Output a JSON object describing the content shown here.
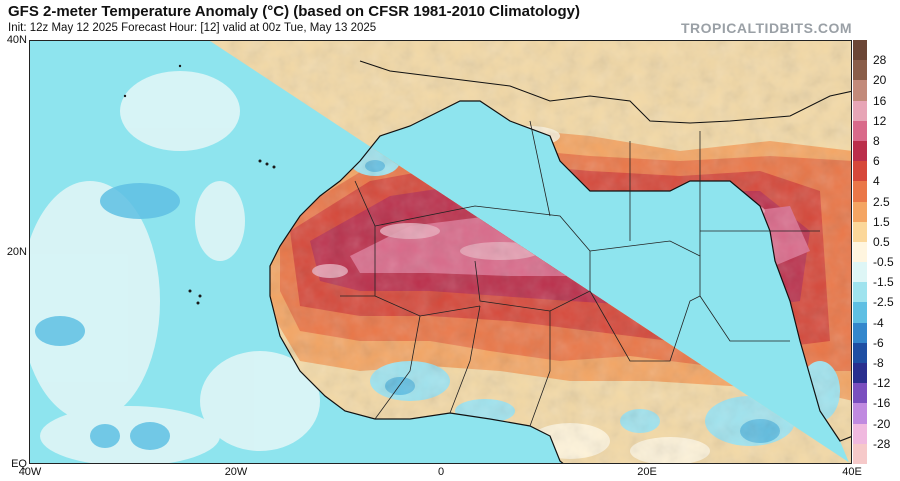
{
  "header": {
    "title": "GFS 2-meter Temperature Anomaly (°C) (based on CFSR 1981-2010 Climatology)",
    "subtitle": "Init: 12z May 12 2025   Forecast Hour: [12]   valid at 00z Tue, May 13 2025",
    "brand": "TROPICALTIDBITS.COM"
  },
  "axes": {
    "lat_labels": [
      "40N",
      "20N",
      "EQ"
    ],
    "lon_labels": [
      "40W",
      "20W",
      "0",
      "20E",
      "40E"
    ]
  },
  "map": {
    "region": "North Africa and eastern Atlantic",
    "lon_range": [
      -40,
      40
    ],
    "lat_range": [
      0,
      40
    ],
    "ocean_color": "#8ee4ee",
    "land_base_color": "#f3d9a6"
  },
  "colorbar": {
    "labels": [
      "28",
      "20",
      "16",
      "12",
      "8",
      "6",
      "4",
      "2.5",
      "1.5",
      "0.5",
      "-0.5",
      "-1.5",
      "-2.5",
      "-4",
      "-6",
      "-8",
      "-12",
      "-16",
      "-20",
      "-28"
    ],
    "colors": [
      "#6b4636",
      "#8a5e4a",
      "#c28a7a",
      "#e7a5b6",
      "#d96a8a",
      "#bb2f4b",
      "#d6483a",
      "#ea7748",
      "#f4a563",
      "#fbd79a",
      "#fff5df",
      "#def6f6",
      "#9fe3ee",
      "#5fbfe3",
      "#3487cc",
      "#1f4fa3",
      "#2a2f8f",
      "#7a4fbf",
      "#c08ae0",
      "#f0b9df",
      "#f6c9c9"
    ]
  }
}
